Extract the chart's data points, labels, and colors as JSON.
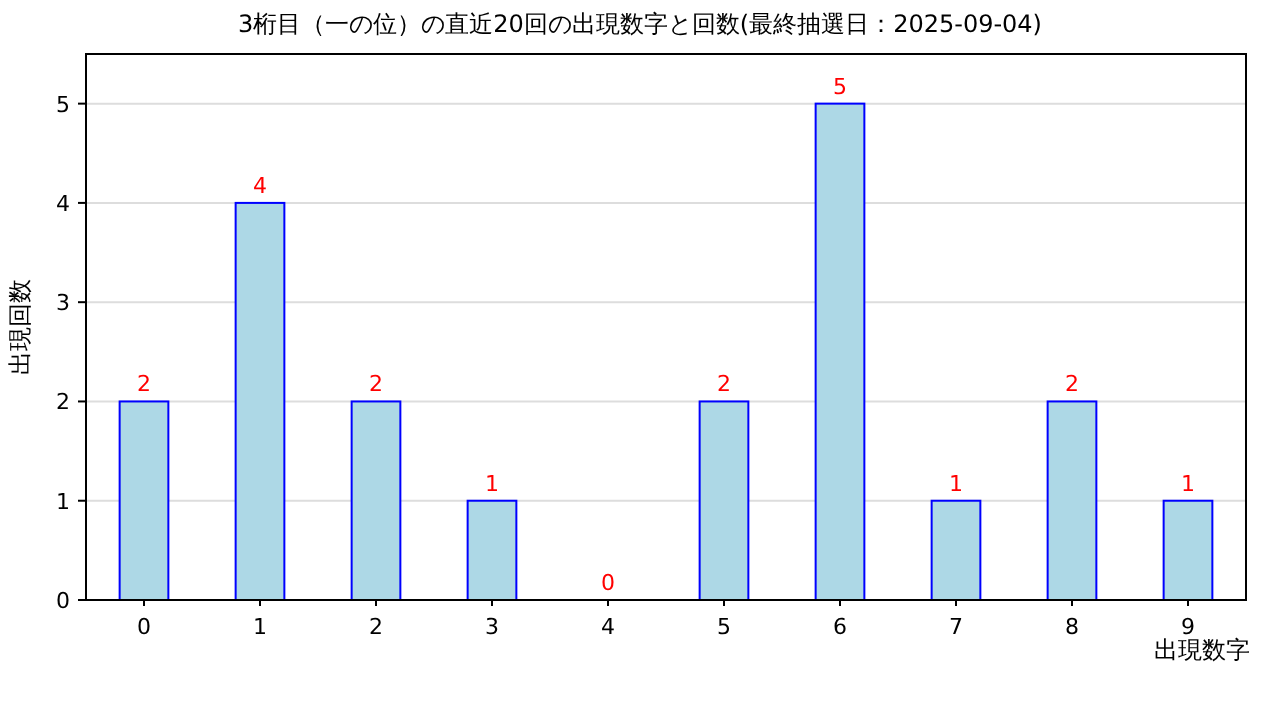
{
  "chart_data": {
    "type": "bar",
    "title": "3桁目（一の位）の直近20回の出現数字と回数(最終抽選日：2025-09-04)",
    "xlabel": "出現数字",
    "ylabel": "出現回数",
    "categories": [
      "0",
      "1",
      "2",
      "3",
      "4",
      "5",
      "6",
      "7",
      "8",
      "9"
    ],
    "values": [
      2,
      4,
      2,
      1,
      0,
      2,
      5,
      1,
      2,
      1
    ],
    "color": "#add8e6",
    "ylim": [
      0,
      5.5
    ],
    "yticks": [
      0,
      1,
      2,
      3,
      4,
      5
    ],
    "grid": "y",
    "data_labels": true
  }
}
